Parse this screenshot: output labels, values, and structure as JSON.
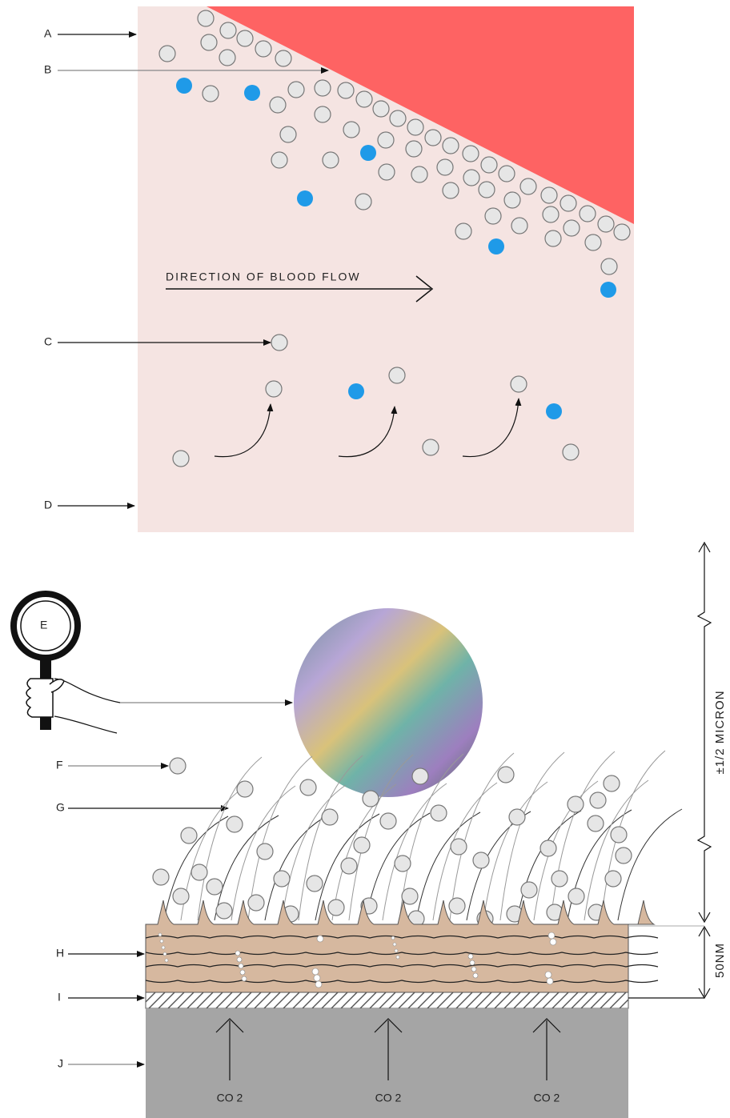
{
  "labels": [
    "A",
    "B",
    "C",
    "D",
    "E",
    "F",
    "G",
    "H",
    "I",
    "J"
  ],
  "flow_label": "DIRECTION OF BLOOD FLOW",
  "dimensions": {
    "micron": "±1/2 MICRON",
    "nm": "50NM"
  },
  "co2_labels": [
    "CO 2",
    "CO 2",
    "CO 2"
  ]
}
